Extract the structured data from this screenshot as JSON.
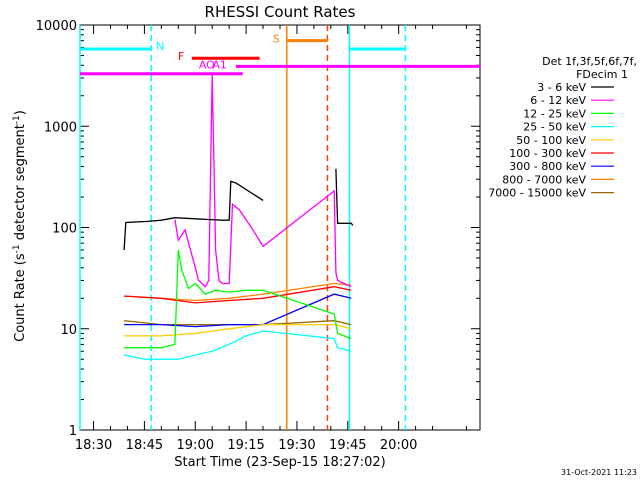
{
  "chart_data": {
    "type": "line",
    "title": "RHESSI Count Rates",
    "xlabel": "Start Time (23-Sep-15 18:27:02)",
    "ylabel_main": "Count Rate (s",
    "ylabel_sup1": "-1",
    "ylabel_mid": " detector segment",
    "ylabel_sup2": "-1",
    "ylabel_end": ")",
    "y_scale": "log",
    "ylim": [
      1,
      10000
    ],
    "xlim_minutes": [
      1106,
      1224
    ],
    "x_ticks": [
      {
        "m": 1110,
        "label": "18:30"
      },
      {
        "m": 1125,
        "label": "18:45"
      },
      {
        "m": 1140,
        "label": "19:00"
      },
      {
        "m": 1155,
        "label": "19:15"
      },
      {
        "m": 1170,
        "label": "19:30"
      },
      {
        "m": 1185,
        "label": "19:45"
      },
      {
        "m": 1200,
        "label": "20:00"
      }
    ],
    "y_ticks": [
      {
        "v": 1,
        "label": "1"
      },
      {
        "v": 10,
        "label": "10"
      },
      {
        "v": 100,
        "label": "100"
      },
      {
        "v": 1000,
        "label": "1000"
      },
      {
        "v": 10000,
        "label": "10000"
      }
    ],
    "legend": {
      "header1": "Det 1f,3f,5f,6f,7f,",
      "header2": "FDecim 1",
      "placement": "right"
    },
    "series": [
      {
        "name": "3 - 6 keV",
        "color": "#000000",
        "x": [
          1119,
          1119.5,
          1126,
          1130,
          1134,
          1140,
          1144,
          1148,
          1150,
          1150.5,
          1152,
          1160,
          1160.5,
          1167,
          1181,
          1181.5,
          1182,
          1186,
          1186.5
        ],
        "y": [
          60,
          112,
          115,
          118,
          125,
          122,
          120,
          118,
          118,
          285,
          275,
          185,
          0,
          0,
          0,
          380,
          110,
          110,
          105
        ]
      },
      {
        "name": "6 - 12 keV",
        "color": "#ff00ff",
        "x": [
          1134,
          1135,
          1137,
          1140,
          1141,
          1143,
          1144,
          1145,
          1146,
          1147,
          1148,
          1150,
          1151,
          1153,
          1157,
          1160,
          1181,
          1181.5,
          1182,
          1186
        ],
        "y": [
          120,
          75,
          95,
          40,
          30,
          26,
          30,
          3300,
          60,
          30,
          28,
          28,
          170,
          150,
          95,
          65,
          230,
          36,
          30,
          26
        ]
      },
      {
        "name": "12 - 25 keV",
        "color": "#00ff00",
        "x": [
          1119,
          1130,
          1134,
          1135,
          1136,
          1138,
          1140,
          1143,
          1146,
          1150,
          1155,
          1160,
          1181,
          1182,
          1186
        ],
        "y": [
          6.5,
          6.5,
          7,
          60,
          38,
          25,
          28,
          22,
          24,
          23,
          24,
          24,
          14,
          9,
          8
        ]
      },
      {
        "name": "25 - 50 keV",
        "color": "#00ffff",
        "x": [
          1119,
          1125,
          1130,
          1135,
          1140,
          1145,
          1150,
          1155,
          1160,
          1181,
          1182,
          1186
        ],
        "y": [
          5.5,
          5,
          5,
          5,
          5.5,
          6,
          7,
          8.5,
          9.5,
          8,
          6.5,
          6
        ]
      },
      {
        "name": "50 - 100 keV",
        "color": "#ffcc00",
        "x": [
          1119,
          1130,
          1140,
          1150,
          1160,
          1181,
          1186
        ],
        "y": [
          8.5,
          8.5,
          9,
          10,
          11,
          11,
          10
        ]
      },
      {
        "name": "100 - 300 keV",
        "color": "#ff0000",
        "x": [
          1119,
          1130,
          1140,
          1150,
          1160,
          1181,
          1186
        ],
        "y": [
          21,
          20,
          18,
          19,
          20,
          26,
          24
        ]
      },
      {
        "name": "300 - 800 keV",
        "color": "#0000ff",
        "x": [
          1119,
          1130,
          1140,
          1150,
          1160,
          1181,
          1186
        ],
        "y": [
          11,
          11,
          10.5,
          11,
          11,
          22,
          20
        ]
      },
      {
        "name": "800 - 7000 keV",
        "color": "#ff8000",
        "x": [
          1119,
          1130,
          1140,
          1150,
          1160,
          1181,
          1186
        ],
        "y": [
          21,
          20,
          19,
          20,
          22,
          28,
          27
        ]
      },
      {
        "name": "7000 - 15000 keV",
        "color": "#996600",
        "x": [
          1119,
          1130,
          1140,
          1150,
          1160,
          1181,
          1186
        ],
        "y": [
          12,
          11,
          11,
          11,
          11,
          12,
          11
        ]
      }
    ],
    "annotations": {
      "N": {
        "label": "N",
        "color": "#00ffff",
        "y": 5800,
        "segments": [
          [
            1106,
            1127
          ],
          [
            1185.5,
            1202
          ]
        ]
      },
      "F": {
        "label": "F",
        "color": "#ff0000",
        "y": 4700,
        "segments": [
          [
            1139,
            1159
          ]
        ]
      },
      "S": {
        "label": "S",
        "color": "#ff8000",
        "y": 7000,
        "segments": [
          [
            1167,
            1179
          ]
        ]
      },
      "D": {
        "label": "",
        "color": "#ff00ff",
        "y": 3300,
        "segments": [
          [
            1106,
            1154
          ]
        ]
      },
      "D2": {
        "label": "",
        "color": "#ff00ff",
        "y": 3900,
        "segments": [
          [
            1152,
            1224
          ]
        ]
      },
      "AO": {
        "label": "AO",
        "color": "#ff00ff",
        "m": 1144
      },
      "A1": {
        "label": "A1",
        "color": "#ff00ff",
        "m": 1148
      }
    },
    "vlines": [
      {
        "m": 1106,
        "color": "#00ffff",
        "style": "solid"
      },
      {
        "m": 1127,
        "color": "#00ffff",
        "style": "dashed"
      },
      {
        "m": 1167,
        "color": "#ff8000",
        "style": "solid"
      },
      {
        "m": 1185.5,
        "color": "#00ffff",
        "style": "solid"
      },
      {
        "m": 1202,
        "color": "#00ffff",
        "style": "dashed"
      },
      {
        "m": 1179,
        "color": "#ff4000",
        "style": "dashed"
      }
    ]
  },
  "footer_timestamp": "31-Oct-2021 11:23"
}
